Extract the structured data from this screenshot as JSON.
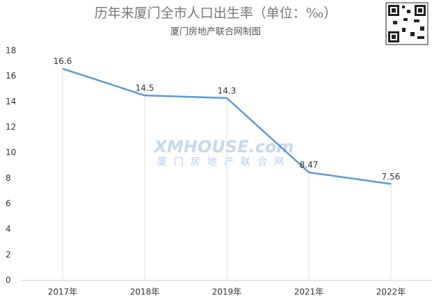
{
  "chart_data": {
    "type": "line",
    "title": "历年来厦门全市人口出生率（单位：‰）",
    "subtitle": "厦门房地产联合网制图",
    "watermark": {
      "logo": "XMHOUSE.com",
      "text": "厦门房地产联合网"
    },
    "categories": [
      "2017年",
      "2018年",
      "2019年",
      "2021年",
      "2022年"
    ],
    "values": [
      16.6,
      14.5,
      14.3,
      8.47,
      7.56
    ],
    "color": "#5b9bd5",
    "ylim": [
      0,
      18
    ],
    "yticks": [
      0,
      2,
      4,
      6,
      8,
      10,
      12,
      14,
      16,
      18
    ],
    "drop_lines": true
  }
}
